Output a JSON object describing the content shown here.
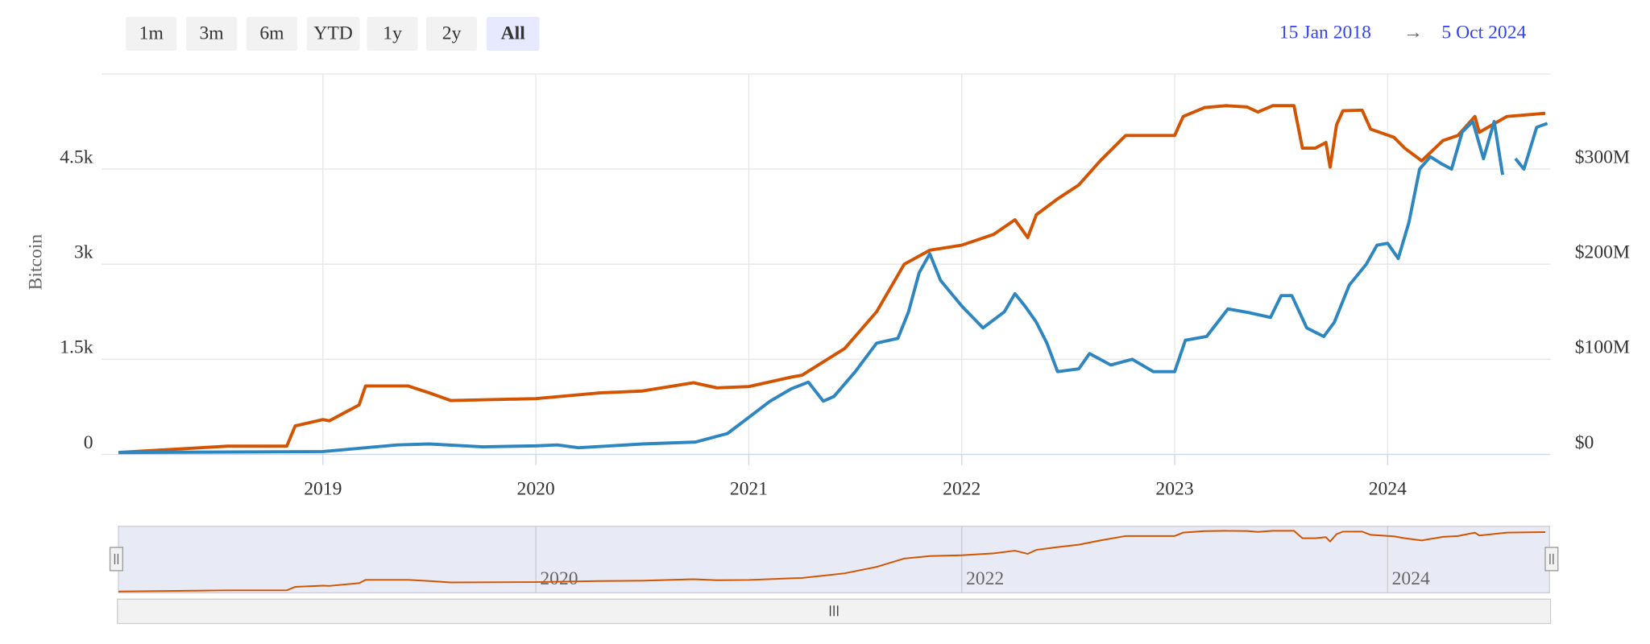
{
  "chart_data": {
    "type": "line",
    "range_buttons": [
      "1m",
      "3m",
      "6m",
      "YTD",
      "1y",
      "2y",
      "All"
    ],
    "selected_range": "All",
    "date_from": "15 Jan 2018",
    "range_separator": "→",
    "date_to": "5 Oct 2024",
    "y_label": "Bitcoin",
    "xlim": [
      2018.04,
      2024.76
    ],
    "xticks": [
      2019,
      2020,
      2021,
      2022,
      2023,
      2024
    ],
    "navigator_xticks": [
      2020,
      2022,
      2024
    ],
    "ylim": [
      0,
      6000
    ],
    "yticks": [
      0,
      {
        "value": 1500,
        "label": "1.5k"
      },
      {
        "value": 3000,
        "label": "3k"
      },
      {
        "value": 4500,
        "label": "4.5k"
      }
    ],
    "y2lim": [
      0,
      400000000
    ],
    "y2ticks": [
      {
        "value": 0,
        "label": "$0"
      },
      {
        "value": 100000000,
        "label": "$100M"
      },
      {
        "value": 200000000,
        "label": "$200M"
      },
      {
        "value": 300000000,
        "label": "$300M"
      }
    ],
    "grid": true,
    "series": [
      {
        "color": "#d35400",
        "axis": "y",
        "x": [
          2018.04,
          2018.5,
          2018.55,
          2018.83,
          2018.87,
          2019.0,
          2019.03,
          2019.17,
          2019.2,
          2019.4,
          2019.5,
          2019.6,
          2020.0,
          2020.3,
          2020.5,
          2020.74,
          2020.85,
          2021.0,
          2021.2,
          2021.25,
          2021.45,
          2021.6,
          2021.73,
          2021.85,
          2022.0,
          2022.15,
          2022.25,
          2022.31,
          2022.35,
          2022.45,
          2022.55,
          2022.65,
          2022.77,
          2023.0,
          2023.04,
          2023.14,
          2023.24,
          2023.34,
          2023.39,
          2023.46,
          2023.56,
          2023.6,
          2023.66,
          2023.71,
          2023.73,
          2023.76,
          2023.79,
          2023.88,
          2023.92,
          2024.03,
          2024.08,
          2024.16,
          2024.26,
          2024.33,
          2024.41,
          2024.43,
          2024.56,
          2024.74
        ],
        "values": [
          30,
          120,
          130,
          130,
          450,
          550,
          530,
          780,
          1080,
          1080,
          970,
          850,
          880,
          970,
          1000,
          1130,
          1050,
          1070,
          1220,
          1250,
          1670,
          2250,
          3000,
          3220,
          3300,
          3470,
          3700,
          3420,
          3780,
          4030,
          4250,
          4630,
          5030,
          5030,
          5330,
          5470,
          5500,
          5480,
          5400,
          5500,
          5500,
          4830,
          4830,
          4920,
          4530,
          5200,
          5420,
          5430,
          5130,
          5000,
          4830,
          4630,
          4950,
          5030,
          5330,
          5080,
          5330,
          5380
        ]
      },
      {
        "color": "#2e86c1",
        "axis": "y2",
        "x": [
          2018.04,
          2019.0,
          2019.2,
          2019.35,
          2019.5,
          2019.75,
          2020.0,
          2020.1,
          2020.2,
          2020.5,
          2020.75,
          2020.9,
          2021.0,
          2021.1,
          2021.2,
          2021.28,
          2021.35,
          2021.4,
          2021.5,
          2021.6,
          2021.7,
          2021.75,
          2021.8,
          2021.85,
          2021.9,
          2022.0,
          2022.1,
          2022.2,
          2022.25,
          2022.3,
          2022.35,
          2022.4,
          2022.45,
          2022.55,
          2022.6,
          2022.7,
          2022.8,
          2022.9,
          2023.0,
          2023.05,
          2023.15,
          2023.25,
          2023.35,
          2023.45,
          2023.5,
          2023.55,
          2023.62,
          2023.7,
          2023.75,
          2023.82,
          2023.9,
          2023.95,
          2024.0,
          2024.05,
          2024.1,
          2024.15,
          2024.2,
          2024.25,
          2024.3,
          2024.35,
          2024.4,
          2024.45,
          2024.5,
          2024.54,
          2024.57,
          2024.6,
          2024.64,
          2024.7,
          2024.75
        ],
        "values": [
          2000000,
          3000000,
          7000000,
          10000000,
          11000000,
          8000000,
          9000000,
          10000000,
          7000000,
          11000000,
          13000000,
          22000000,
          39000000,
          56000000,
          69000000,
          76000000,
          56000000,
          61000000,
          87000000,
          117000000,
          122000000,
          150000000,
          191000000,
          211000000,
          183000000,
          156000000,
          133000000,
          150000000,
          169000000,
          155000000,
          139000000,
          117000000,
          87000000,
          90000000,
          106000000,
          94000000,
          100000000,
          87000000,
          87000000,
          120000000,
          124000000,
          153000000,
          149000000,
          144000000,
          167000000,
          167000000,
          133000000,
          124000000,
          139000000,
          178000000,
          200000000,
          220000000,
          222000000,
          206000000,
          244000000,
          300000000,
          313000000,
          306000000,
          300000000,
          339000000,
          350000000,
          311000000,
          350000000,
          294000000,
          null,
          311000000,
          300000000,
          344000000,
          348000000
        ]
      }
    ]
  }
}
